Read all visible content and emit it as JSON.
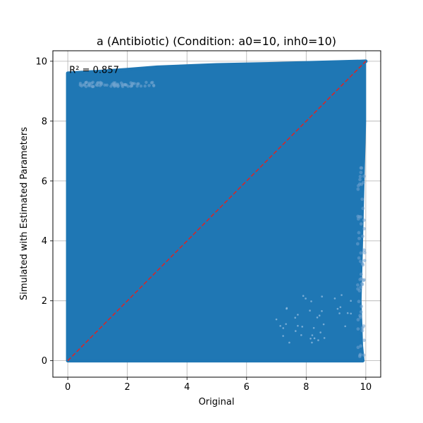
{
  "chart_data": {
    "type": "scatter",
    "title": "a (Antibiotic) (Condition: a0=10, inh0=10)",
    "xlabel": "Original",
    "ylabel": "Simulated with Estimated Parameters",
    "xlim": [
      -0.5,
      10.5
    ],
    "ylim": [
      -0.55,
      10.35
    ],
    "xticks": [
      0,
      2,
      4,
      6,
      8,
      10
    ],
    "yticks": [
      0,
      2,
      4,
      6,
      8,
      10
    ],
    "xtick_labels": [
      "0",
      "2",
      "4",
      "6",
      "8",
      "10"
    ],
    "ytick_labels": [
      "0",
      "2",
      "4",
      "6",
      "8",
      "10"
    ],
    "grid": true,
    "annotation": "R² = 0.857",
    "annotation_pos": [
      0.05,
      9.7
    ],
    "point_color": "#1f77b4",
    "reference_line": {
      "x": [
        0,
        10
      ],
      "y": [
        0,
        10
      ],
      "color": "#d62728",
      "style": "dashed"
    },
    "point_cloud": {
      "x_range": [
        0,
        10
      ],
      "y_range": [
        0,
        9.9
      ],
      "upper_edge": [
        [
          0,
          9.6
        ],
        [
          1,
          9.65
        ],
        [
          2,
          9.72
        ],
        [
          3,
          9.8
        ],
        [
          5,
          9.88
        ],
        [
          7,
          9.92
        ],
        [
          10,
          10.0
        ]
      ],
      "right_edge": [
        [
          9.95,
          10.0
        ],
        [
          9.95,
          8.0
        ],
        [
          9.9,
          6.0
        ],
        [
          9.85,
          4.0
        ],
        [
          9.8,
          2.0
        ],
        [
          9.85,
          0.5
        ],
        [
          9.9,
          0
        ]
      ]
    }
  }
}
